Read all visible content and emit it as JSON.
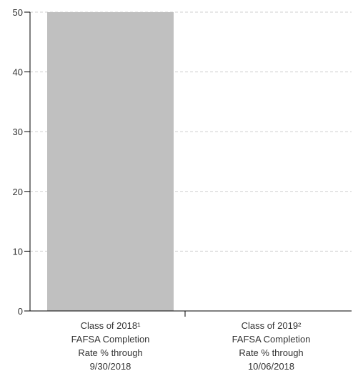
{
  "chart_data": {
    "type": "bar",
    "categories": [
      [
        "Class of 2018¹",
        "FAFSA Completion",
        "Rate % through",
        "9/30/2018"
      ],
      [
        "Class of 2019²",
        "FAFSA Completion",
        "Rate % through",
        "10/06/2018"
      ]
    ],
    "values": [
      50,
      0
    ],
    "ylim": [
      0,
      50
    ],
    "yticks": [
      "0",
      "10",
      "20",
      "30",
      "40",
      "50"
    ],
    "grid": true,
    "bar_color": "#c0c0c0",
    "grid_color": "#d0d0d0",
    "axis_color": "#000000",
    "text_color": "#333333"
  }
}
